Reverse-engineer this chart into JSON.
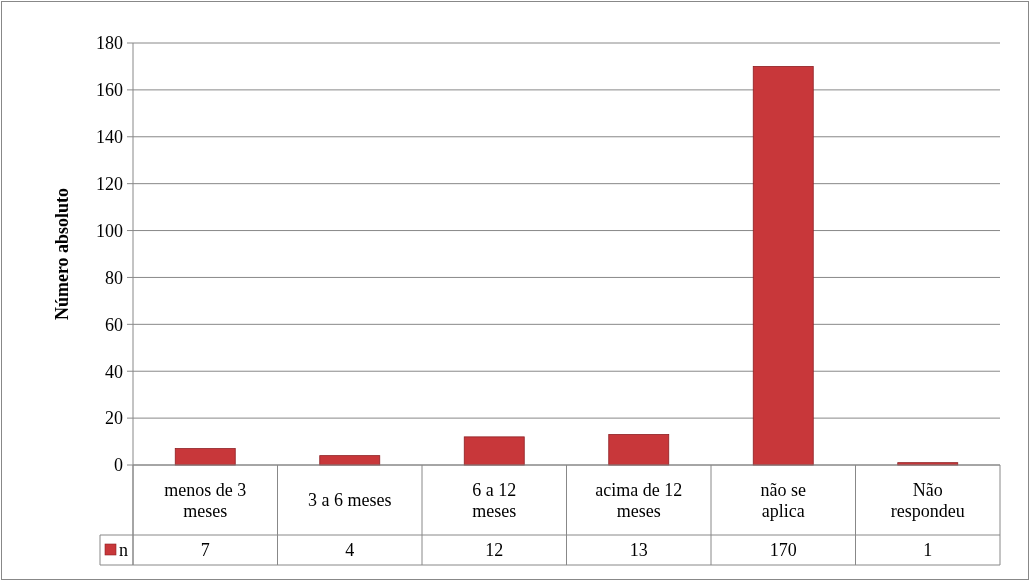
{
  "chart_data": {
    "type": "bar",
    "ylabel": "Número absoluto",
    "categories": [
      "menos de 3 meses",
      "3 a 6 meses",
      "6 a 12 meses",
      "acima de 12 meses",
      "não se aplica",
      "Não respondeu"
    ],
    "series": [
      {
        "name": "n",
        "color": "#c8373a",
        "values": [
          7,
          4,
          12,
          13,
          170,
          1
        ]
      }
    ],
    "ylim": [
      0,
      180
    ],
    "yticks": [
      0,
      20,
      40,
      60,
      80,
      100,
      120,
      140,
      160,
      180
    ],
    "grid": "y",
    "legend": "bottom left",
    "data_labels": true
  }
}
